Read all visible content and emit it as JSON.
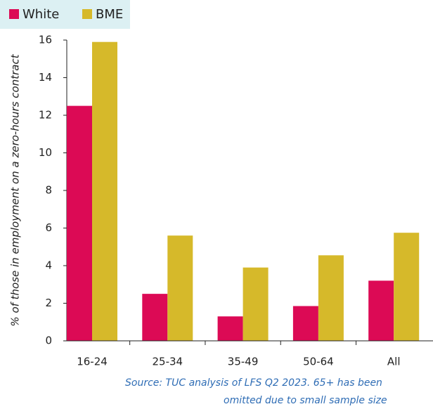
{
  "chart_data": {
    "type": "bar",
    "y_label": "% of those in employment on a zero-hours contract",
    "categories": [
      "16-24",
      "25-34",
      "35-49",
      "50-64",
      "All"
    ],
    "series": [
      {
        "name": "White",
        "color": "#dc0a55",
        "values": [
          12.5,
          2.5,
          1.3,
          1.85,
          3.2
        ]
      },
      {
        "name": "BME",
        "color": "#d6b92a",
        "values": [
          15.9,
          5.6,
          3.9,
          4.55,
          5.75
        ]
      }
    ],
    "ylim": [
      0,
      16
    ],
    "yticks": [
      0,
      2,
      4,
      6,
      8,
      10,
      12,
      14,
      16
    ],
    "source": [
      "Source: TUC analysis of LFS Q2 2023. 65+ has been",
      "omitted due to small sample size"
    ]
  }
}
